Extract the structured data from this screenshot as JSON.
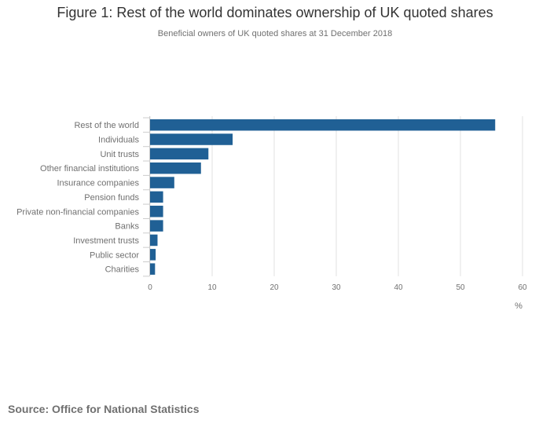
{
  "title": "Figure 1: Rest of the world dominates ownership of UK quoted shares",
  "subtitle": "Beneficial owners of UK quoted shares at 31 December 2018",
  "source": "Source: Office for National Statistics",
  "colors": {
    "bar": "#206095",
    "grid": "#e0e0e0",
    "axis": "#cccccc"
  },
  "chart_data": {
    "type": "bar",
    "orientation": "horizontal",
    "categories": [
      "Rest of the world",
      "Individuals",
      "Unit trusts",
      "Other financial institutions",
      "Insurance companies",
      "Pension funds",
      "Private non-financial companies",
      "Banks",
      "Investment trusts",
      "Public sector",
      "Charities"
    ],
    "values": [
      55.6,
      13.3,
      9.4,
      8.2,
      3.9,
      2.1,
      2.1,
      2.1,
      1.2,
      0.9,
      0.8
    ],
    "xlabel": "%",
    "xlim": [
      0,
      60
    ],
    "xticks": [
      0,
      10,
      20,
      30,
      40,
      50,
      60
    ],
    "grid": true
  }
}
